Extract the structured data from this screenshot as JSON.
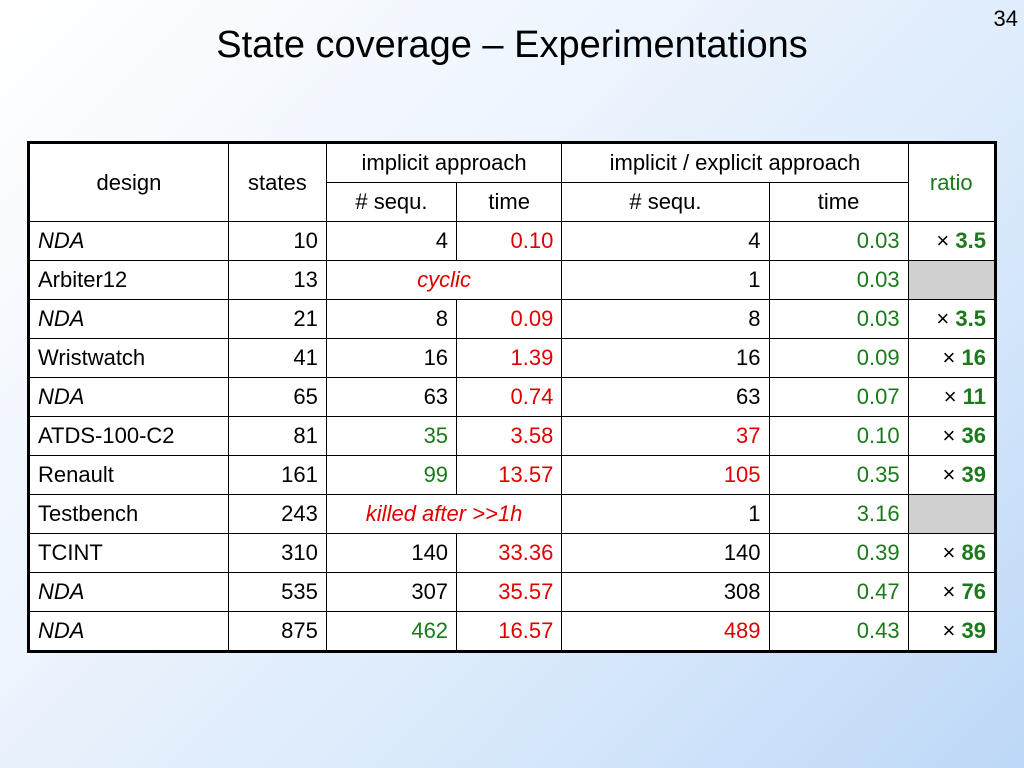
{
  "slide": {
    "title": "State coverage – Experimentations",
    "page_number": "34"
  },
  "headers": {
    "design": "design",
    "states": "states",
    "implicit": "implicit approach",
    "implicit_explicit": "implicit / explicit approach",
    "ratio": "ratio",
    "sequ": "# sequ.",
    "time": "time"
  },
  "ratio_symbol": "×",
  "rows": [
    {
      "design": "NDA",
      "states": "10",
      "imp_seq": "4",
      "imp_time": "0.10",
      "ie_seq": "4",
      "ie_time": "0.03",
      "ratio": "3.5"
    },
    {
      "design": "Arbiter12",
      "states": "13",
      "imp_note": "cyclic",
      "ie_seq": "1",
      "ie_time": "0.03",
      "ratio": ""
    },
    {
      "design": "NDA",
      "states": "21",
      "imp_seq": "8",
      "imp_time": "0.09",
      "ie_seq": "8",
      "ie_time": "0.03",
      "ratio": "3.5"
    },
    {
      "design": "Wristwatch",
      "states": "41",
      "imp_seq": "16",
      "imp_time": "1.39",
      "ie_seq": "16",
      "ie_time": "0.09",
      "ratio": "16"
    },
    {
      "design": "NDA",
      "states": "65",
      "imp_seq": "63",
      "imp_time": "0.74",
      "ie_seq": "63",
      "ie_time": "0.07",
      "ratio": "11"
    },
    {
      "design": "ATDS-100-C2",
      "states": "81",
      "imp_seq": "35",
      "imp_time": "3.58",
      "ie_seq": "37",
      "ie_time": "0.10",
      "ratio": "36"
    },
    {
      "design": "Renault",
      "states": "161",
      "imp_seq": "99",
      "imp_time": "13.57",
      "ie_seq": "105",
      "ie_time": "0.35",
      "ratio": "39"
    },
    {
      "design": "Testbench",
      "states": "243",
      "imp_note": "killed after >>1h",
      "ie_seq": "1",
      "ie_time": "3.16",
      "ratio": ""
    },
    {
      "design": "TCINT",
      "states": "310",
      "imp_seq": "140",
      "imp_time": "33.36",
      "ie_seq": "140",
      "ie_time": "0.39",
      "ratio": "86"
    },
    {
      "design": "NDA",
      "states": "535",
      "imp_seq": "307",
      "imp_time": "35.57",
      "ie_seq": "308",
      "ie_time": "0.47",
      "ratio": "76"
    },
    {
      "design": "NDA",
      "states": "875",
      "imp_seq": "462",
      "imp_time": "16.57",
      "ie_seq": "489",
      "ie_time": "0.43",
      "ratio": "39"
    }
  ]
}
